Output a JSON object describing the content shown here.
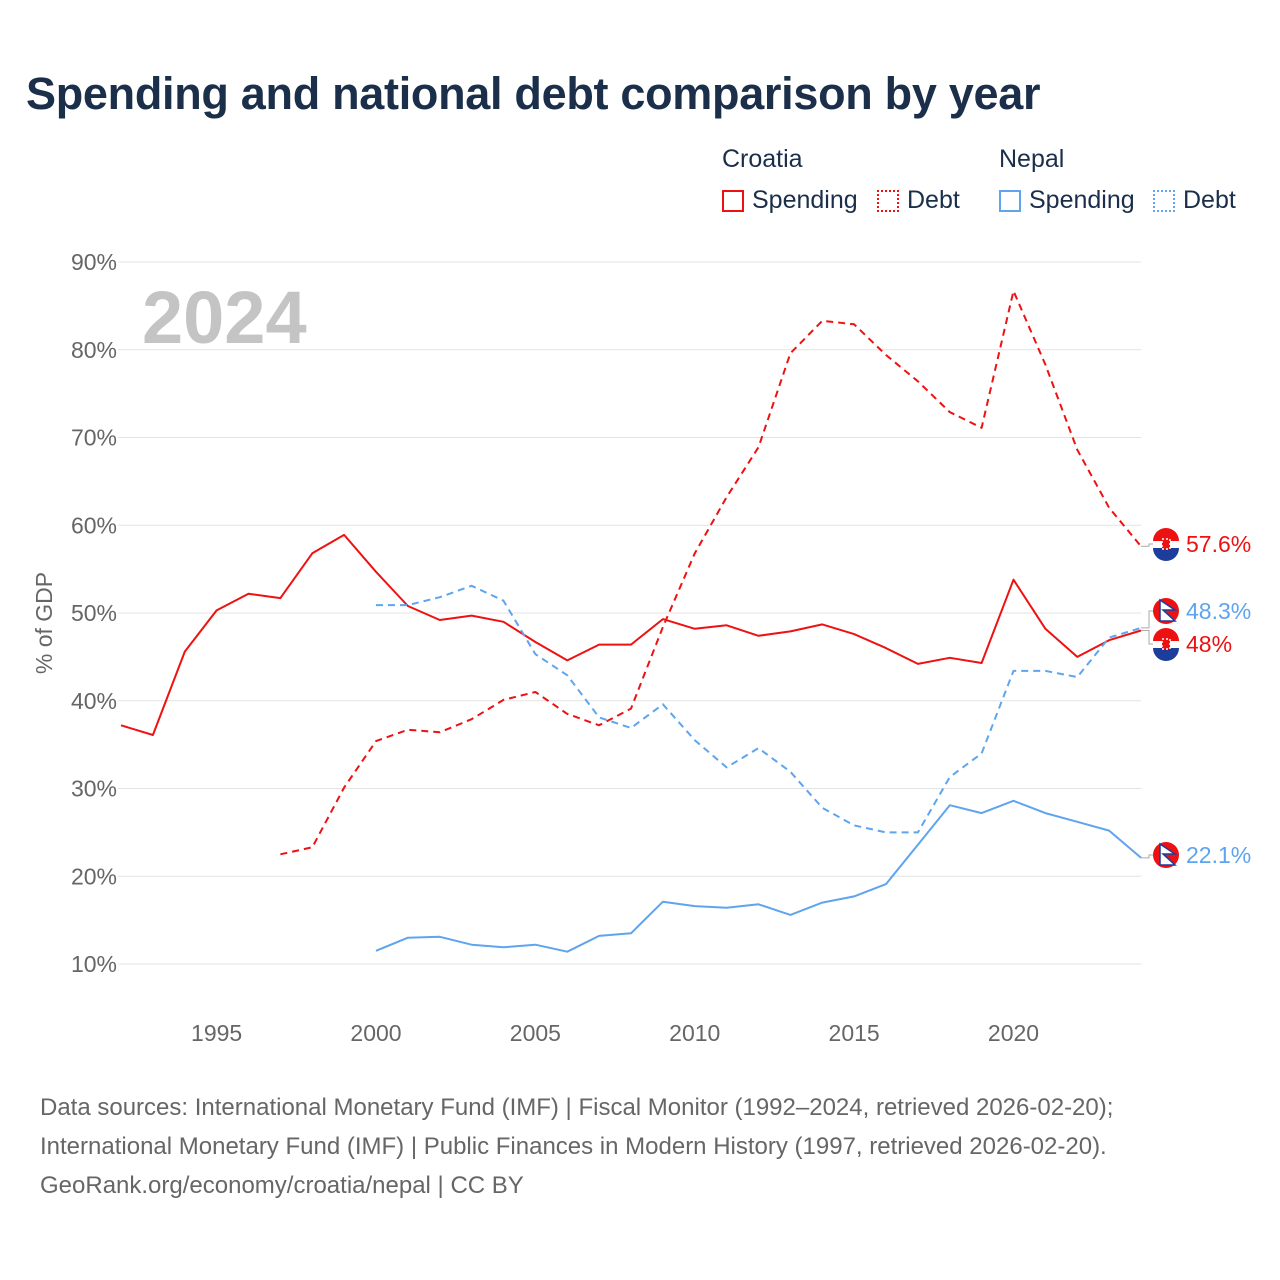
{
  "title": "Spending and national debt comparison by year",
  "legend": {
    "groups": [
      {
        "name": "Croatia",
        "color": "#ee1111",
        "items": [
          "Spending",
          "Debt"
        ]
      },
      {
        "name": "Nepal",
        "color": "#5ea4ee",
        "items": [
          "Spending",
          "Debt"
        ]
      }
    ]
  },
  "footer": [
    "Data sources: International Monetary Fund (IMF) | Fiscal Monitor (1992–2024, retrieved 2026-02-20);",
    "International Monetary Fund (IMF) | Public Finances in Modern History (1997, retrieved 2026-02-20).",
    "GeoRank.org/economy/croatia/nepal | CC BY"
  ],
  "chart_data": {
    "type": "line",
    "title": "Spending and national debt comparison by year",
    "year_label": "2024",
    "xlabel": "",
    "ylabel": "% of GDP",
    "xlim": [
      1992,
      2024
    ],
    "ylim": [
      5,
      90
    ],
    "xticks": [
      1995,
      2000,
      2005,
      2010,
      2015,
      2020
    ],
    "yticks": [
      10,
      20,
      30,
      40,
      50,
      60,
      70,
      80,
      90
    ],
    "ytick_labels": [
      "10%",
      "20%",
      "30%",
      "40%",
      "50%",
      "60%",
      "70%",
      "80%",
      "90%"
    ],
    "grid": true,
    "legend_position": "top-right",
    "series": [
      {
        "name": "Croatia Spending",
        "country": "Croatia",
        "color": "#ee1111",
        "dash": false,
        "end_label": "48%",
        "x": [
          1992,
          1993,
          1994,
          1995,
          1996,
          1997,
          1998,
          1999,
          2000,
          2001,
          2002,
          2003,
          2004,
          2005,
          2006,
          2007,
          2008,
          2009,
          2010,
          2011,
          2012,
          2013,
          2014,
          2015,
          2016,
          2017,
          2018,
          2019,
          2020,
          2021,
          2022,
          2023,
          2024
        ],
        "values": [
          37.2,
          36.1,
          45.6,
          50.3,
          52.2,
          51.7,
          56.8,
          58.9,
          54.7,
          50.8,
          49.2,
          49.7,
          49.0,
          46.7,
          44.6,
          46.4,
          46.4,
          49.3,
          48.2,
          48.6,
          47.4,
          47.9,
          48.7,
          47.6,
          46.0,
          44.2,
          44.9,
          44.3,
          53.8,
          48.2,
          45.0,
          46.9,
          48.0
        ]
      },
      {
        "name": "Croatia Debt",
        "country": "Croatia",
        "color": "#ee1111",
        "dash": true,
        "end_label": "57.6%",
        "x": [
          1997,
          1998,
          1999,
          2000,
          2001,
          2002,
          2003,
          2004,
          2005,
          2006,
          2007,
          2008,
          2009,
          2010,
          2011,
          2012,
          2013,
          2014,
          2015,
          2016,
          2017,
          2018,
          2019,
          2020,
          2021,
          2022,
          2023,
          2024
        ],
        "values": [
          22.5,
          23.3,
          30.1,
          35.4,
          36.7,
          36.4,
          37.9,
          40.1,
          41.0,
          38.5,
          37.2,
          39.1,
          48.4,
          56.8,
          63.2,
          68.9,
          79.6,
          83.3,
          82.9,
          79.4,
          76.4,
          72.9,
          71.1,
          86.7,
          78.3,
          68.6,
          62.0,
          57.6
        ]
      },
      {
        "name": "Nepal Spending",
        "country": "Nepal",
        "color": "#5ea4ee",
        "dash": false,
        "end_label": "22.1%",
        "x": [
          2000,
          2001,
          2002,
          2003,
          2004,
          2005,
          2006,
          2007,
          2008,
          2009,
          2010,
          2011,
          2012,
          2013,
          2014,
          2015,
          2016,
          2017,
          2018,
          2019,
          2020,
          2021,
          2022,
          2023,
          2024
        ],
        "values": [
          11.5,
          13.0,
          13.1,
          12.2,
          11.9,
          12.2,
          11.4,
          13.2,
          13.5,
          17.1,
          16.6,
          16.4,
          16.8,
          15.6,
          17.0,
          17.7,
          19.1,
          23.6,
          28.1,
          27.2,
          28.6,
          27.2,
          26.2,
          25.2,
          22.1
        ]
      },
      {
        "name": "Nepal Debt",
        "country": "Nepal",
        "color": "#5ea4ee",
        "dash": true,
        "end_label": "48.3%",
        "x": [
          2000,
          2001,
          2002,
          2003,
          2004,
          2005,
          2006,
          2007,
          2008,
          2009,
          2010,
          2011,
          2012,
          2013,
          2014,
          2015,
          2016,
          2017,
          2018,
          2019,
          2020,
          2021,
          2022,
          2023,
          2024
        ],
        "values": [
          50.9,
          50.9,
          51.8,
          53.1,
          51.4,
          45.3,
          42.9,
          38.1,
          36.9,
          39.6,
          35.5,
          32.4,
          34.6,
          31.9,
          27.8,
          25.8,
          25.0,
          25.0,
          31.3,
          34.0,
          43.4,
          43.4,
          42.7,
          47.2,
          48.3
        ]
      }
    ]
  }
}
